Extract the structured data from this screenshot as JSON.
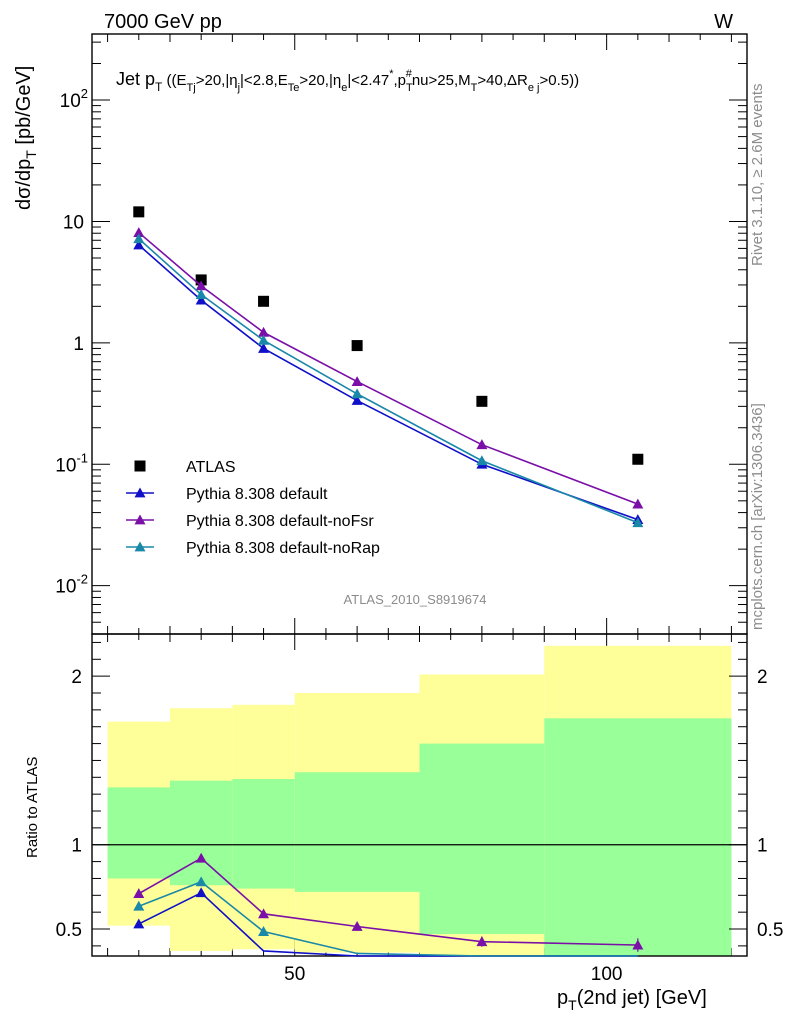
{
  "header": {
    "energy_label": "7000 GeV pp",
    "process_label": "W"
  },
  "side_labels": {
    "rivet": "Rivet 3.1.10, ≥ 2.6M events",
    "mcplots": "mcplots.cern.ch [arXiv:1306.3436]"
  },
  "chart_data": [
    {
      "type": "scatter",
      "title": "Jet p_T ((E_Tj>20,|η_j|<2.8,E_Te>20,|η_e|<2.47*,p_T^#nu>25,M_T>40,ΔR_ej>0.5))",
      "xlabel": "p_T(2nd jet) [GeV]",
      "ylabel": "dσ/dp_T [pb/GeV]",
      "xlim": [
        17.5,
        122.5
      ],
      "ylim": [
        0.004,
        350
      ],
      "yscale": "log",
      "ytick_labels": [
        "10^-2",
        "10^-1",
        "1",
        "10",
        "10^2"
      ],
      "analysis_label": "ATLAS_2010_S8919674",
      "legend_position": "bottom-left",
      "series": [
        {
          "name": "ATLAS",
          "color": "#000000",
          "marker": "square",
          "x": [
            25,
            35,
            45,
            60,
            80,
            105
          ],
          "y": [
            12.0,
            3.3,
            2.2,
            0.95,
            0.33,
            0.11
          ]
        },
        {
          "name": "Pythia 8.308 default",
          "color": "#1010c8",
          "marker": "triangle",
          "x": [
            25,
            35,
            45,
            60,
            80,
            105
          ],
          "y": [
            6.4,
            2.25,
            0.9,
            0.335,
            0.1,
            0.035
          ]
        },
        {
          "name": "Pythia 8.308 default-noFsr",
          "color": "#7a10a8",
          "marker": "triangle",
          "x": [
            25,
            35,
            45,
            60,
            80,
            105
          ],
          "y": [
            8.1,
            2.95,
            1.22,
            0.48,
            0.145,
            0.047
          ]
        },
        {
          "name": "Pythia 8.308 default-noRap",
          "color": "#1a88a8",
          "marker": "triangle",
          "x": [
            25,
            35,
            45,
            60,
            80,
            105
          ],
          "y": [
            7.2,
            2.5,
            1.05,
            0.38,
            0.107,
            0.033
          ]
        }
      ]
    },
    {
      "type": "scatter",
      "xlabel": "p_T(2nd jet) [GeV]",
      "ylabel": "Ratio to ATLAS",
      "xlim": [
        17.5,
        122.5
      ],
      "ylim": [
        0.34,
        2.25
      ],
      "ytick_labels": [
        "0.5",
        "1",
        "2"
      ],
      "xtick_labels": [
        "50",
        "100"
      ],
      "bands": {
        "bin_edges": [
          20,
          30,
          40,
          50,
          70,
          90,
          120
        ],
        "green_low": [
          0.8,
          0.76,
          0.74,
          0.72,
          0.47,
          0.34
        ],
        "green_high": [
          1.34,
          1.38,
          1.39,
          1.43,
          1.6,
          1.75
        ],
        "yellow_low": [
          0.52,
          0.37,
          0.38,
          0.36,
          0.34,
          0.34
        ],
        "yellow_high": [
          1.73,
          1.81,
          1.83,
          1.9,
          2.01,
          2.18
        ],
        "green_color": "#99ff99",
        "yellow_color": "#ffff99"
      },
      "series": [
        {
          "name": "Pythia 8.308 default",
          "color": "#1010c8",
          "x": [
            25,
            35,
            45,
            60,
            80,
            105
          ],
          "y": [
            0.53,
            0.715,
            0.37,
            0.33,
            0.3,
            0.3
          ]
        },
        {
          "name": "Pythia 8.308 default-noFsr",
          "color": "#7a10a8",
          "x": [
            25,
            35,
            45,
            60,
            80,
            105
          ],
          "y": [
            0.71,
            0.92,
            0.59,
            0.515,
            0.425,
            0.405
          ]
        },
        {
          "name": "Pythia 8.308 default-noRap",
          "color": "#1a88a8",
          "x": [
            25,
            35,
            45,
            60,
            80,
            105
          ],
          "y": [
            0.635,
            0.78,
            0.485,
            0.355,
            0.3,
            0.3
          ]
        }
      ]
    }
  ]
}
